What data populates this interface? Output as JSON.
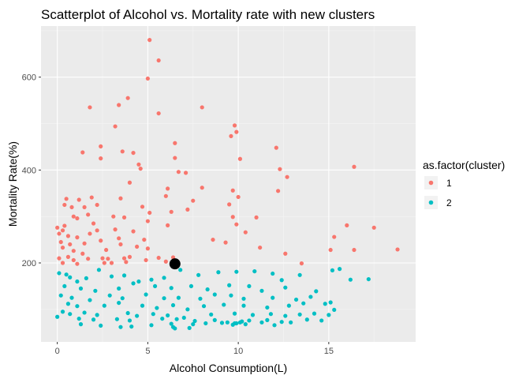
{
  "chart_data": {
    "type": "scatter",
    "title": "Scatterplot of Alcohol vs. Mortality rate with new clusters",
    "xlabel": "Alcohol Consumption(L)",
    "ylabel": "Mortality Rate(%)",
    "xlim": [
      -0.9,
      19.8
    ],
    "ylim": [
      30,
      710
    ],
    "x_ticks": [
      0,
      5,
      10,
      15
    ],
    "y_ticks": [
      200,
      400,
      600
    ],
    "x_tick_labels": [
      "0",
      "5",
      "10",
      "15"
    ],
    "y_tick_labels": [
      "200",
      "400",
      "600"
    ],
    "grid": true,
    "legend_position": "right",
    "legend_title": "as.factor(cluster)",
    "series": [
      {
        "name": "1",
        "color": "#F8766D",
        "points": [
          [
            5.1,
            680
          ],
          [
            5.6,
            636
          ],
          [
            5.0,
            597
          ],
          [
            3.9,
            555
          ],
          [
            3.4,
            540
          ],
          [
            1.8,
            535
          ],
          [
            5.6,
            522
          ],
          [
            8.0,
            535
          ],
          [
            3.2,
            494
          ],
          [
            9.8,
            496
          ],
          [
            9.9,
            482
          ],
          [
            9.6,
            473
          ],
          [
            6.5,
            458
          ],
          [
            12.1,
            448
          ],
          [
            2.4,
            451
          ],
          [
            1.4,
            438
          ],
          [
            3.6,
            440
          ],
          [
            4.2,
            437
          ],
          [
            10.1,
            424
          ],
          [
            2.4,
            425
          ],
          [
            4.5,
            412
          ],
          [
            4.6,
            403
          ],
          [
            6.5,
            426
          ],
          [
            12.3,
            402
          ],
          [
            16.4,
            407
          ],
          [
            6.7,
            396
          ],
          [
            7.1,
            394
          ],
          [
            12.7,
            385
          ],
          [
            4.0,
            373
          ],
          [
            6.1,
            360
          ],
          [
            8.0,
            362
          ],
          [
            9.7,
            356
          ],
          [
            10.0,
            342
          ],
          [
            12.2,
            355
          ],
          [
            0.5,
            338
          ],
          [
            1.2,
            336
          ],
          [
            1.9,
            341
          ],
          [
            2.2,
            325
          ],
          [
            3.5,
            339
          ],
          [
            6.0,
            344
          ],
          [
            7.5,
            334
          ],
          [
            9.5,
            326
          ],
          [
            0.4,
            325
          ],
          [
            0.8,
            320
          ],
          [
            1.5,
            320
          ],
          [
            4.7,
            321
          ],
          [
            5.1,
            308
          ],
          [
            6.3,
            310
          ],
          [
            7.2,
            315
          ],
          [
            9.7,
            299
          ],
          [
            11.0,
            298
          ],
          [
            0.0,
            276
          ],
          [
            0.3,
            270
          ],
          [
            0.9,
            300
          ],
          [
            1.1,
            296
          ],
          [
            1.7,
            304
          ],
          [
            2.0,
            285
          ],
          [
            3.1,
            300
          ],
          [
            3.7,
            298
          ],
          [
            5.0,
            290
          ],
          [
            6.1,
            281
          ],
          [
            9.9,
            283
          ],
          [
            16.0,
            281
          ],
          [
            17.5,
            276
          ],
          [
            0.1,
            263
          ],
          [
            0.4,
            280
          ],
          [
            0.6,
            258
          ],
          [
            1.1,
            255
          ],
          [
            1.8,
            263
          ],
          [
            2.2,
            270
          ],
          [
            3.2,
            272
          ],
          [
            4.2,
            268
          ],
          [
            10.4,
            266
          ],
          [
            15.3,
            256
          ],
          [
            0.2,
            245
          ],
          [
            0.7,
            240
          ],
          [
            1.5,
            242
          ],
          [
            2.4,
            248
          ],
          [
            3.4,
            253
          ],
          [
            4.8,
            250
          ],
          [
            8.6,
            250
          ],
          [
            9.3,
            244
          ],
          [
            0.3,
            233
          ],
          [
            0.9,
            226
          ],
          [
            1.4,
            220
          ],
          [
            2.7,
            228
          ],
          [
            3.5,
            240
          ],
          [
            4.4,
            235
          ],
          [
            5.0,
            231
          ],
          [
            11.2,
            233
          ],
          [
            15.1,
            228
          ],
          [
            16.4,
            228
          ],
          [
            18.8,
            229
          ],
          [
            0.1,
            210
          ],
          [
            0.6,
            213
          ],
          [
            0.9,
            206
          ],
          [
            1.7,
            209
          ],
          [
            2.5,
            210
          ],
          [
            2.8,
            209
          ],
          [
            3.7,
            210
          ],
          [
            4.0,
            213
          ],
          [
            4.9,
            206
          ],
          [
            5.6,
            211
          ],
          [
            6.4,
            212
          ],
          [
            12.6,
            220
          ],
          [
            13.5,
            199
          ],
          [
            0.3,
            200
          ],
          [
            1.1,
            198
          ],
          [
            3.0,
            200
          ],
          [
            6.0,
            203
          ],
          [
            2.6,
            200
          ],
          [
            3.8,
            202
          ]
        ]
      },
      {
        "name": "2",
        "color": "#00BFC4",
        "points": [
          [
            0.1,
            178
          ],
          [
            0.5,
            175
          ],
          [
            0.7,
            169
          ],
          [
            1.1,
            160
          ],
          [
            1.6,
            167
          ],
          [
            2.3,
            185
          ],
          [
            3.0,
            171
          ],
          [
            3.7,
            173
          ],
          [
            4.5,
            160
          ],
          [
            5.2,
            164
          ],
          [
            5.9,
            168
          ],
          [
            6.8,
            185
          ],
          [
            7.8,
            174
          ],
          [
            8.9,
            180
          ],
          [
            9.9,
            181
          ],
          [
            10.9,
            182
          ],
          [
            11.9,
            177
          ],
          [
            12.4,
            163
          ],
          [
            13.4,
            174
          ],
          [
            15.2,
            184
          ],
          [
            15.6,
            187
          ],
          [
            16.2,
            164
          ],
          [
            17.2,
            165
          ],
          [
            0.4,
            150
          ],
          [
            1.3,
            145
          ],
          [
            2.1,
            140
          ],
          [
            3.4,
            145
          ],
          [
            4.2,
            156
          ],
          [
            5.4,
            150
          ],
          [
            6.3,
            146
          ],
          [
            7.4,
            150
          ],
          [
            8.3,
            143
          ],
          [
            9.5,
            152
          ],
          [
            10.6,
            150
          ],
          [
            11.3,
            140
          ],
          [
            12.6,
            147
          ],
          [
            14.3,
            139
          ],
          [
            0.2,
            130
          ],
          [
            0.8,
            125
          ],
          [
            1.8,
            120
          ],
          [
            2.9,
            130
          ],
          [
            3.6,
            124
          ],
          [
            4.9,
            132
          ],
          [
            5.9,
            124
          ],
          [
            6.7,
            125
          ],
          [
            7.9,
            123
          ],
          [
            8.7,
            132
          ],
          [
            9.6,
            130
          ],
          [
            10.3,
            123
          ],
          [
            11.9,
            125
          ],
          [
            13.2,
            121
          ],
          [
            14.0,
            127
          ],
          [
            15.1,
            115
          ],
          [
            0.6,
            112
          ],
          [
            1.1,
            107
          ],
          [
            2.6,
            108
          ],
          [
            3.4,
            114
          ],
          [
            4.7,
            108
          ],
          [
            5.5,
            103
          ],
          [
            6.4,
            109
          ],
          [
            7.2,
            100
          ],
          [
            8.1,
            107
          ],
          [
            9.2,
            110
          ],
          [
            10.3,
            108
          ],
          [
            11.6,
            104
          ],
          [
            12.8,
            108
          ],
          [
            13.6,
            113
          ],
          [
            14.8,
            112
          ],
          [
            15.3,
            99
          ],
          [
            0.3,
            95
          ],
          [
            0.7,
            90
          ],
          [
            1.5,
            93
          ],
          [
            2.2,
            88
          ],
          [
            3.9,
            92
          ],
          [
            4.4,
            86
          ],
          [
            5.3,
            90
          ],
          [
            6.1,
            87
          ],
          [
            7.0,
            82
          ],
          [
            8.5,
            89
          ],
          [
            9.8,
            91
          ],
          [
            10.8,
            88
          ],
          [
            11.8,
            90
          ],
          [
            12.6,
            86
          ],
          [
            13.4,
            89
          ],
          [
            14.2,
            91
          ],
          [
            15.0,
            88
          ],
          [
            0.0,
            84
          ],
          [
            1.2,
            80
          ],
          [
            2.0,
            78
          ],
          [
            3.3,
            79
          ],
          [
            4.0,
            76
          ],
          [
            5.8,
            80
          ],
          [
            6.6,
            79
          ],
          [
            7.6,
            75
          ],
          [
            8.7,
            77
          ],
          [
            9.4,
            72
          ],
          [
            9.9,
            70
          ],
          [
            10.2,
            74
          ],
          [
            10.6,
            76
          ],
          [
            11.6,
            77
          ],
          [
            12.4,
            73
          ],
          [
            13.8,
            78
          ],
          [
            14.6,
            76
          ],
          [
            1.3,
            68
          ],
          [
            2.4,
            65
          ],
          [
            3.5,
            62
          ],
          [
            4.1,
            63
          ],
          [
            5.2,
            66
          ],
          [
            6.3,
            69
          ],
          [
            7.5,
            68
          ],
          [
            8.2,
            70
          ],
          [
            9.1,
            71
          ],
          [
            9.7,
            67
          ],
          [
            10.4,
            68
          ],
          [
            11.3,
            72
          ],
          [
            12.9,
            72
          ],
          [
            6.4,
            62
          ],
          [
            7.3,
            60
          ],
          [
            12.0,
            66
          ],
          [
            6.5,
            59
          ],
          [
            9.8,
            70
          ],
          [
            10.1,
            72
          ]
        ]
      }
    ],
    "highlight_point": {
      "x": 6.5,
      "y": 198,
      "color": "#000000"
    },
    "colors": {
      "panel_background": "#EBEBEB",
      "grid_major": "#FFFFFF",
      "cluster_1": "#F8766D",
      "cluster_2": "#00BFC4",
      "legend_key_background": "#F2F2F2"
    }
  },
  "legend": {
    "title": "as.factor(cluster)",
    "items": [
      {
        "label": "1",
        "color": "#F8766D"
      },
      {
        "label": "2",
        "color": "#00BFC4"
      }
    ]
  }
}
